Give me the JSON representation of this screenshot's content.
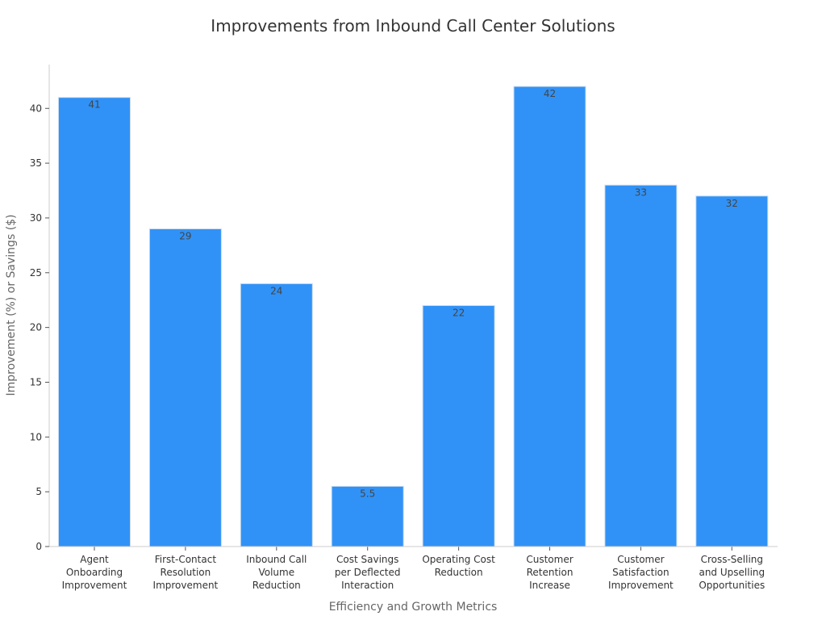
{
  "chart_data": {
    "type": "bar",
    "title": "Improvements from Inbound Call Center Solutions",
    "xlabel": "Efficiency and Growth Metrics",
    "ylabel": "Improvement (%) or Savings ($)",
    "categories": [
      [
        "Agent",
        "Onboarding",
        "Improvement"
      ],
      [
        "First-Contact",
        "Resolution",
        "Improvement"
      ],
      [
        "Inbound Call",
        "Volume",
        "Reduction"
      ],
      [
        "Cost Savings",
        "per Deflected",
        "Interaction"
      ],
      [
        "Operating Cost",
        "Reduction"
      ],
      [
        "Customer",
        "Retention",
        "Increase"
      ],
      [
        "Customer",
        "Satisfaction",
        "Improvement"
      ],
      [
        "Cross-Selling",
        "and Upselling",
        "Opportunities"
      ]
    ],
    "values": [
      41,
      29,
      24,
      5.5,
      22,
      42,
      33,
      32
    ],
    "value_labels": [
      "41",
      "29",
      "24",
      "5.5",
      "22",
      "42",
      "33",
      "32"
    ],
    "ylim": [
      0,
      44
    ],
    "yticks": [
      0,
      5,
      10,
      15,
      20,
      25,
      30,
      35,
      40
    ],
    "grid": false,
    "bar_color": "#3092f7",
    "bar_edge_color": "#c9dcf0",
    "axis_color": "#cccccc"
  }
}
